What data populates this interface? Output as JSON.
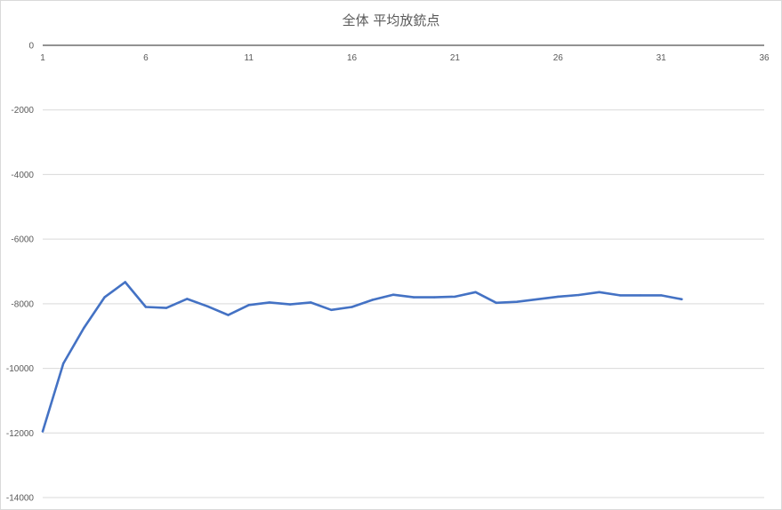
{
  "chart_data": {
    "type": "line",
    "title": "全体 平均放銃点",
    "xlabel": "",
    "ylabel": "",
    "xlim": [
      1,
      36
    ],
    "ylim": [
      -14000,
      0
    ],
    "x_ticks": [
      1,
      6,
      11,
      16,
      21,
      26,
      31,
      36
    ],
    "y_ticks": [
      0,
      -2000,
      -4000,
      -6000,
      -8000,
      -10000,
      -12000,
      -14000
    ],
    "x_tick_position": "top",
    "grid": "horizontal",
    "legend": "none",
    "series": [
      {
        "color": "#4472C4",
        "x": [
          1,
          2,
          3,
          4,
          5,
          6,
          7,
          8,
          9,
          10,
          11,
          12,
          13,
          14,
          15,
          16,
          17,
          18,
          19,
          20,
          21,
          22,
          23,
          24,
          25,
          26,
          27,
          28,
          29,
          30,
          31,
          32
        ],
        "values": [
          -11950,
          -9850,
          -8750,
          -7800,
          -7330,
          -8100,
          -8130,
          -7850,
          -8080,
          -8350,
          -8040,
          -7960,
          -8020,
          -7960,
          -8190,
          -8100,
          -7880,
          -7720,
          -7800,
          -7800,
          -7780,
          -7640,
          -7970,
          -7940,
          -7860,
          -7780,
          -7730,
          -7640,
          -7740,
          -7740,
          -7740,
          -7860
        ]
      }
    ]
  }
}
